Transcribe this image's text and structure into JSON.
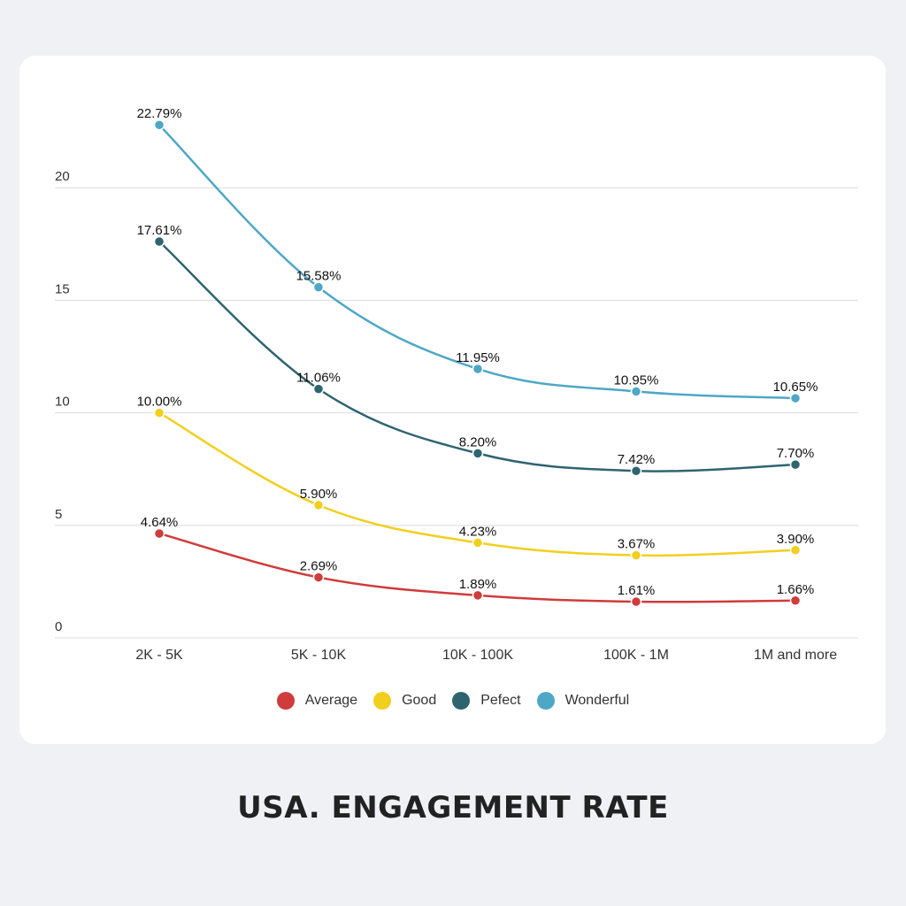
{
  "chart_data": {
    "type": "line",
    "title": "USA. ENGAGEMENT RATE",
    "xlabel": "",
    "ylabel": "",
    "categories": [
      "2K - 5K",
      "5K - 10K",
      "10K - 100K",
      "100K - 1M",
      "1M and more"
    ],
    "ylim": [
      0,
      25
    ],
    "yticks": [
      0,
      5,
      10,
      15,
      20
    ],
    "grid": true,
    "legend_position": "bottom",
    "series": [
      {
        "name": "Average",
        "color": "#d03b3b",
        "values": [
          4.64,
          2.69,
          1.89,
          1.61,
          1.66
        ],
        "labels": [
          "4.64%",
          "2.69%",
          "1.89%",
          "1.61%",
          "1.66%"
        ]
      },
      {
        "name": "Good",
        "color": "#f2cf1d",
        "values": [
          10.0,
          5.9,
          4.23,
          3.67,
          3.9
        ],
        "labels": [
          "10.00%",
          "5.90%",
          "4.23%",
          "3.67%",
          "3.90%"
        ]
      },
      {
        "name": "Pefect",
        "color": "#2e6470",
        "values": [
          17.61,
          11.06,
          8.2,
          7.42,
          7.7
        ],
        "labels": [
          "17.61%",
          "11.06%",
          "8.20%",
          "7.42%",
          "7.70%"
        ]
      },
      {
        "name": "Wonderful",
        "color": "#4ea7c6",
        "values": [
          22.79,
          15.58,
          11.95,
          10.95,
          10.65
        ],
        "labels": [
          "22.79%",
          "15.58%",
          "11.95%",
          "10.95%",
          "10.65%"
        ]
      }
    ]
  }
}
